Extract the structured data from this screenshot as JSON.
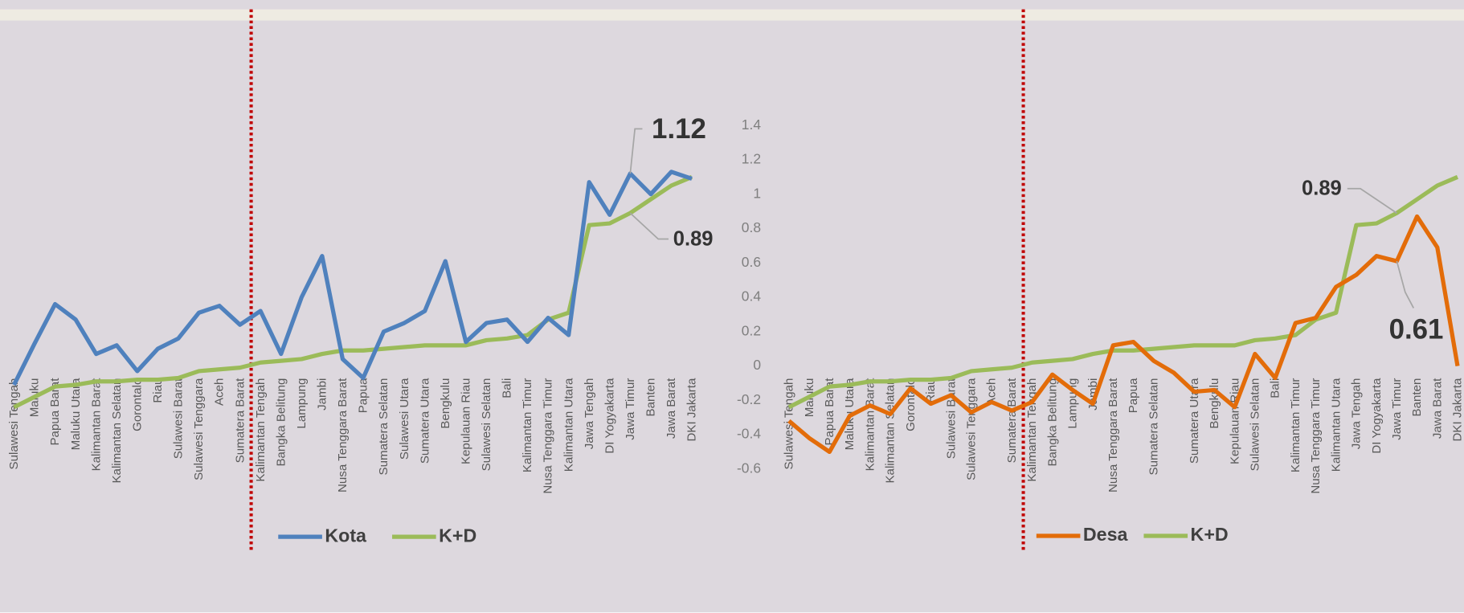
{
  "chart_data": [
    {
      "type": "line",
      "categories": [
        "Sulawesi Tengah",
        "Maluku",
        "Papua Barat",
        "Maluku Utara",
        "Kalimantan Barat",
        "Kalimantan Selatan",
        "Gorontalo",
        "Riau",
        "Sulawesi Barat",
        "Sulawesi Tenggara",
        "Aceh",
        "Sumatera Barat",
        "Kalimantan Tengah",
        "Bangka Belitung",
        "Lampung",
        "Jambi",
        "Nusa Tenggara Barat",
        "Papua",
        "Sumatera Selatan",
        "Sulawesi Utara",
        "Sumatera Utara",
        "Bengkulu",
        "Kepulauan Riau",
        "Sulawesi Selatan",
        "Bali",
        "Kalimantan Timur",
        "Nusa Tenggara Timur",
        "Kalimantan Utara",
        "Jawa Tengah",
        "DI Yogyakarta",
        "Jawa Timur",
        "Banten",
        "Jawa Barat",
        "DKI Jakarta"
      ],
      "series": [
        {
          "name": "Kota",
          "color": "#4f81bd",
          "values": [
            -0.11,
            0.13,
            0.36,
            0.27,
            0.07,
            0.12,
            -0.03,
            0.1,
            0.16,
            0.31,
            0.35,
            0.24,
            0.32,
            0.07,
            0.4,
            0.64,
            0.04,
            -0.07,
            0.2,
            0.25,
            0.32,
            0.61,
            0.14,
            0.25,
            0.27,
            0.14,
            0.28,
            0.18,
            1.07,
            0.88,
            1.12,
            1.0,
            1.13,
            1.09
          ],
          "value_labels": [
            null,
            null,
            null,
            null,
            null,
            null,
            null,
            null,
            null,
            null,
            null,
            null,
            null,
            null,
            null,
            null,
            null,
            null,
            null,
            null,
            null,
            null,
            null,
            null,
            null,
            null,
            null,
            null,
            null,
            null,
            "1.12",
            null,
            null,
            null
          ]
        },
        {
          "name": "K+D",
          "color": "#9bbb59",
          "values": [
            -0.24,
            -0.18,
            -0.12,
            -0.11,
            -0.09,
            -0.09,
            -0.08,
            -0.08,
            -0.07,
            -0.03,
            -0.02,
            -0.01,
            0.02,
            0.03,
            0.04,
            0.07,
            0.09,
            0.09,
            0.1,
            0.11,
            0.12,
            0.12,
            0.12,
            0.15,
            0.16,
            0.18,
            0.27,
            0.31,
            0.82,
            0.83,
            0.89,
            0.97,
            1.05,
            1.1
          ],
          "value_labels": [
            null,
            null,
            null,
            null,
            null,
            null,
            null,
            null,
            null,
            null,
            null,
            null,
            null,
            null,
            null,
            null,
            null,
            null,
            null,
            null,
            null,
            null,
            null,
            null,
            null,
            null,
            null,
            null,
            null,
            null,
            "0.89",
            null,
            null,
            null
          ]
        }
      ],
      "ylim": [
        -0.6,
        1.4
      ],
      "legend": "bottom"
    },
    {
      "type": "line",
      "categories": [
        "Sulawesi Tengah",
        "Maluku",
        "Papua Barat",
        "Maluku Utara",
        "Kalimantan Barat",
        "Kalimantan Selatan",
        "Gorontalo",
        "Riau",
        "Sulawesi Barat",
        "Sulawesi Tenggara",
        "Aceh",
        "Sumatera Barat",
        "Kalimantan Tengah",
        "Bangka Belitung",
        "Lampung",
        "Jambi",
        "Nusa Tenggara Barat",
        "Papua",
        "Sumatera Selatan",
        null,
        "Sumatera Utara",
        "Bengkulu",
        "Kepulauan Riau",
        "Sulawesi Selatan",
        "Bali",
        "Kalimantan Timur",
        "Nusa Tenggara Timur",
        "Kalimantan Utara",
        "Jawa Tengah",
        "DI Yogyakarta",
        "Jawa Timur",
        "Banten",
        "Jawa Barat",
        "DKI Jakarta"
      ],
      "series": [
        {
          "name": "Desa",
          "color": "#e36c09",
          "values": [
            -0.32,
            -0.42,
            -0.5,
            -0.29,
            -0.23,
            -0.28,
            -0.13,
            -0.22,
            -0.17,
            -0.27,
            -0.21,
            -0.26,
            -0.21,
            -0.05,
            -0.14,
            -0.22,
            0.12,
            0.14,
            0.03,
            -0.04,
            -0.15,
            -0.14,
            -0.24,
            0.07,
            -0.07,
            0.25,
            0.28,
            0.46,
            0.53,
            0.64,
            0.61,
            0.87,
            0.69,
            0.0
          ],
          "value_labels": [
            null,
            null,
            null,
            null,
            null,
            null,
            null,
            null,
            null,
            null,
            null,
            null,
            null,
            null,
            null,
            null,
            null,
            null,
            null,
            null,
            null,
            null,
            null,
            null,
            null,
            null,
            null,
            null,
            null,
            null,
            "0.61",
            null,
            null,
            null
          ]
        },
        {
          "name": "K+D",
          "color": "#9bbb59",
          "values": [
            -0.24,
            -0.18,
            -0.12,
            -0.11,
            -0.09,
            -0.09,
            -0.08,
            -0.08,
            -0.07,
            -0.03,
            -0.02,
            -0.01,
            0.02,
            0.03,
            0.04,
            0.07,
            0.09,
            0.09,
            0.1,
            0.11,
            0.12,
            0.12,
            0.12,
            0.15,
            0.16,
            0.18,
            0.27,
            0.31,
            0.82,
            0.83,
            0.89,
            0.97,
            1.05,
            1.1
          ],
          "value_labels": [
            null,
            null,
            null,
            null,
            null,
            null,
            null,
            null,
            null,
            null,
            null,
            null,
            null,
            null,
            null,
            null,
            null,
            null,
            null,
            null,
            null,
            null,
            null,
            null,
            null,
            null,
            null,
            null,
            null,
            null,
            "0.89",
            null,
            null,
            null
          ]
        }
      ],
      "ylim": [
        -0.6,
        1.4
      ],
      "yticks": [
        -0.6,
        -0.4,
        -0.2,
        0,
        0.2,
        0.4,
        0.6,
        0.8,
        1,
        1.2,
        1.4
      ],
      "legend": "bottom"
    }
  ]
}
